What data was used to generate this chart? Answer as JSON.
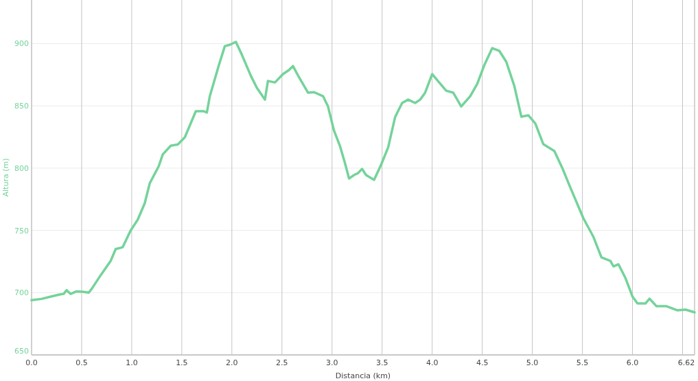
{
  "chart_data": {
    "type": "line",
    "xlabel": "Distancia (km)",
    "ylabel": "Altura (m)",
    "xlim": [
      0,
      6.62
    ],
    "ylim": [
      650,
      935
    ],
    "xticks": [
      {
        "value": 0,
        "label": "0.0"
      },
      {
        "value": 0.5,
        "label": "0.5"
      },
      {
        "value": 1,
        "label": "1.0"
      },
      {
        "value": 1.5,
        "label": "1.5"
      },
      {
        "value": 2,
        "label": "2.0"
      },
      {
        "value": 2.5,
        "label": "2.5"
      },
      {
        "value": 3,
        "label": "3.0"
      },
      {
        "value": 3.5,
        "label": "3.5"
      },
      {
        "value": 4,
        "label": "4.0"
      },
      {
        "value": 4.5,
        "label": "4.5"
      },
      {
        "value": 5,
        "label": "5.0"
      },
      {
        "value": 5.5,
        "label": "5.5"
      },
      {
        "value": 6,
        "label": "6.0"
      },
      {
        "value": 6.5,
        "label": null
      },
      {
        "value": 6.62,
        "label": "6.62"
      }
    ],
    "yticks": [
      650,
      700,
      750,
      800,
      850,
      900
    ],
    "grid": true,
    "marker": "none",
    "line_style": "solid",
    "series": [
      {
        "color": "#74d39a",
        "x": [
          0,
          0.1,
          0.2,
          0.28,
          0.32,
          0.35,
          0.39,
          0.45,
          0.51,
          0.57,
          0.6,
          0.69,
          0.79,
          0.84,
          0.91,
          0.99,
          1.06,
          1.13,
          1.18,
          1.27,
          1.31,
          1.39,
          1.46,
          1.53,
          1.64,
          1.72,
          1.75,
          1.78,
          1.87,
          1.93,
          1.98,
          2.04,
          2.1,
          2.19,
          2.25,
          2.33,
          2.36,
          2.43,
          2.51,
          2.57,
          2.61,
          2.67,
          2.76,
          2.82,
          2.91,
          2.96,
          3.02,
          3.08,
          3.13,
          3.17,
          3.22,
          3.26,
          3.3,
          3.34,
          3.42,
          3.49,
          3.56,
          3.63,
          3.7,
          3.76,
          3.83,
          3.88,
          3.93,
          4.0,
          4.07,
          4.14,
          4.21,
          4.29,
          4.38,
          4.45,
          4.52,
          4.6,
          4.67,
          4.74,
          4.82,
          4.89,
          4.96,
          5.03,
          5.11,
          5.22,
          5.3,
          5.37,
          5.51,
          5.61,
          5.69,
          5.78,
          5.81,
          5.86,
          5.93,
          6.0,
          6.05,
          6.13,
          6.17,
          6.24,
          6.34,
          6.45,
          6.53,
          6.62
        ],
        "values": [
          694,
          695,
          697,
          698.5,
          699,
          702,
          699,
          701,
          700.7,
          700,
          703,
          714,
          725.5,
          735,
          736.5,
          750,
          758.6,
          771.8,
          787.8,
          801.6,
          811,
          818,
          819,
          824.7,
          845.7,
          845.7,
          844.6,
          857.8,
          882.6,
          898,
          899,
          901.4,
          891,
          874,
          864.4,
          855,
          870,
          868.8,
          875.5,
          878.8,
          882,
          873,
          860.6,
          861,
          857.8,
          849.5,
          830,
          817.6,
          803.8,
          791.7,
          794.4,
          796,
          799.4,
          794.4,
          790.6,
          802.7,
          816.5,
          841,
          852.3,
          855,
          852.3,
          855,
          860.6,
          875.5,
          868.8,
          862.2,
          860.6,
          849.5,
          857.8,
          867.7,
          882.6,
          896.4,
          894.2,
          885.4,
          866,
          841.3,
          842.4,
          835.8,
          819.2,
          813.7,
          800,
          786.2,
          759.7,
          744.8,
          728.3,
          725.5,
          721.1,
          722.8,
          711.7,
          696.9,
          691.3,
          691.3,
          695.2,
          689.1,
          689.1,
          685.8,
          686.4,
          684.2
        ]
      }
    ]
  }
}
